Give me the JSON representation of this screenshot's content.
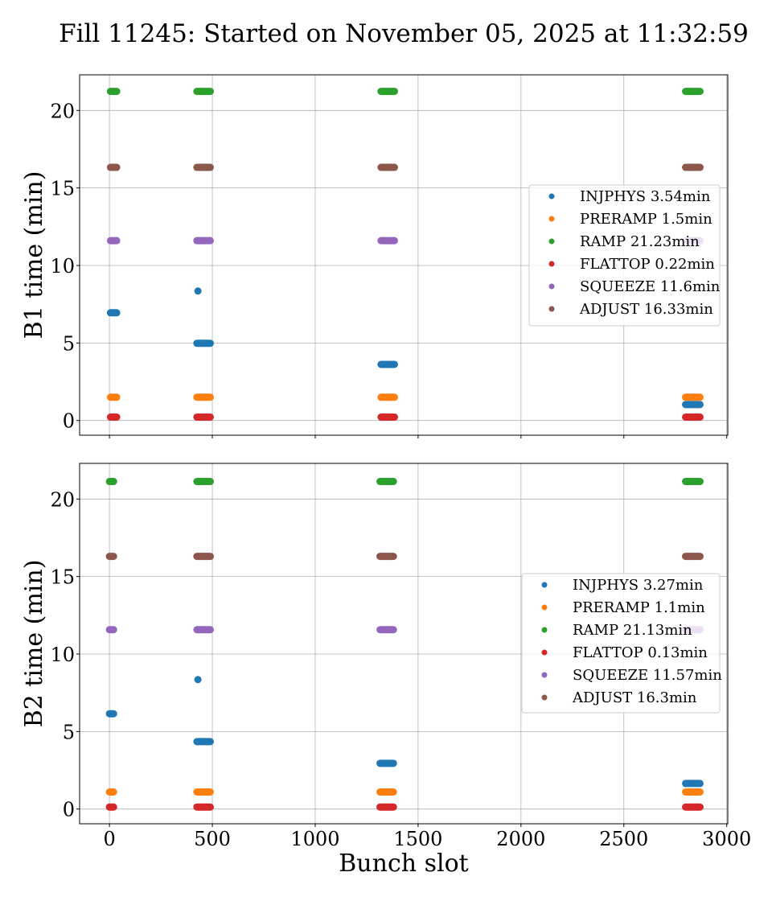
{
  "title": "Fill 11245: Started on November 05, 2025 at 11:32:59",
  "xlabel": "Bunch slot",
  "chart_data": {
    "type": "scatter",
    "title": "Fill 11245: Started on November 05, 2025 at 11:32:59",
    "xlabel": "Bunch slot",
    "xlim": [
      -145,
      3005
    ],
    "x_ticks": [
      0,
      500,
      1000,
      1500,
      2000,
      2500,
      3000
    ],
    "grid": true,
    "panels": [
      {
        "ylabel": "B1 time (min)",
        "ylim": [
          -0.95,
          22.3
        ],
        "y_ticks": [
          0,
          5,
          10,
          15,
          20
        ],
        "legend_position": "center-right",
        "series": [
          {
            "name": "INJPHYS 3.54min",
            "color": "#1f77b4",
            "points": [
              {
                "x0": 5,
                "x1": 35,
                "y": 6.95
              },
              {
                "x0": 430,
                "x1": 430,
                "y": 8.35
              },
              {
                "x0": 425,
                "x1": 490,
                "y": 4.98
              },
              {
                "x0": 1320,
                "x1": 1385,
                "y": 3.62
              },
              {
                "x0": 2800,
                "x1": 2870,
                "y": 1.03
              }
            ]
          },
          {
            "name": "PRERAMP 1.5min",
            "color": "#ff7f0e",
            "points": [
              {
                "x0": 5,
                "x1": 35,
                "y": 1.5
              },
              {
                "x0": 425,
                "x1": 490,
                "y": 1.5
              },
              {
                "x0": 1320,
                "x1": 1385,
                "y": 1.5
              },
              {
                "x0": 2800,
                "x1": 2870,
                "y": 1.5
              }
            ]
          },
          {
            "name": "RAMP 21.23min",
            "color": "#2ca02c",
            "points": [
              {
                "x0": 5,
                "x1": 35,
                "y": 21.23
              },
              {
                "x0": 425,
                "x1": 490,
                "y": 21.23
              },
              {
                "x0": 1320,
                "x1": 1385,
                "y": 21.23
              },
              {
                "x0": 2800,
                "x1": 2870,
                "y": 21.23
              }
            ]
          },
          {
            "name": "FLATTOP 0.22min",
            "color": "#d62728",
            "points": [
              {
                "x0": 5,
                "x1": 35,
                "y": 0.22
              },
              {
                "x0": 425,
                "x1": 490,
                "y": 0.22
              },
              {
                "x0": 1320,
                "x1": 1385,
                "y": 0.22
              },
              {
                "x0": 2800,
                "x1": 2870,
                "y": 0.22
              }
            ]
          },
          {
            "name": "SQUEEZE 11.6min",
            "color": "#9467bd",
            "points": [
              {
                "x0": 5,
                "x1": 35,
                "y": 11.6
              },
              {
                "x0": 425,
                "x1": 490,
                "y": 11.6
              },
              {
                "x0": 1320,
                "x1": 1385,
                "y": 11.6
              },
              {
                "x0": 2800,
                "x1": 2870,
                "y": 11.6
              }
            ]
          },
          {
            "name": "ADJUST 16.33min",
            "color": "#8c564b",
            "points": [
              {
                "x0": 5,
                "x1": 35,
                "y": 16.33
              },
              {
                "x0": 425,
                "x1": 490,
                "y": 16.33
              },
              {
                "x0": 1320,
                "x1": 1385,
                "y": 16.33
              },
              {
                "x0": 2800,
                "x1": 2870,
                "y": 16.33
              }
            ]
          }
        ]
      },
      {
        "ylabel": "B2 time (min)",
        "ylim": [
          -0.95,
          22.3
        ],
        "y_ticks": [
          0,
          5,
          10,
          15,
          20
        ],
        "legend_position": "center-right",
        "series": [
          {
            "name": "INJPHYS 3.27min",
            "color": "#1f77b4",
            "points": [
              {
                "x0": 0,
                "x1": 20,
                "y": 6.15
              },
              {
                "x0": 430,
                "x1": 430,
                "y": 8.35
              },
              {
                "x0": 425,
                "x1": 490,
                "y": 4.35
              },
              {
                "x0": 1315,
                "x1": 1380,
                "y": 2.95
              },
              {
                "x0": 2800,
                "x1": 2870,
                "y": 1.65
              }
            ]
          },
          {
            "name": "PRERAMP 1.1min",
            "color": "#ff7f0e",
            "points": [
              {
                "x0": 0,
                "x1": 20,
                "y": 1.1
              },
              {
                "x0": 425,
                "x1": 490,
                "y": 1.1
              },
              {
                "x0": 1315,
                "x1": 1380,
                "y": 1.1
              },
              {
                "x0": 2800,
                "x1": 2870,
                "y": 1.1
              }
            ]
          },
          {
            "name": "RAMP 21.13min",
            "color": "#2ca02c",
            "points": [
              {
                "x0": 0,
                "x1": 20,
                "y": 21.13
              },
              {
                "x0": 425,
                "x1": 490,
                "y": 21.13
              },
              {
                "x0": 1315,
                "x1": 1380,
                "y": 21.13
              },
              {
                "x0": 2800,
                "x1": 2870,
                "y": 21.13
              }
            ]
          },
          {
            "name": "FLATTOP 0.13min",
            "color": "#d62728",
            "points": [
              {
                "x0": 0,
                "x1": 20,
                "y": 0.13
              },
              {
                "x0": 425,
                "x1": 490,
                "y": 0.13
              },
              {
                "x0": 1315,
                "x1": 1380,
                "y": 0.13
              },
              {
                "x0": 2800,
                "x1": 2870,
                "y": 0.13
              }
            ]
          },
          {
            "name": "SQUEEZE 11.57min",
            "color": "#9467bd",
            "points": [
              {
                "x0": 0,
                "x1": 20,
                "y": 11.57
              },
              {
                "x0": 425,
                "x1": 490,
                "y": 11.57
              },
              {
                "x0": 1315,
                "x1": 1380,
                "y": 11.57
              },
              {
                "x0": 2800,
                "x1": 2870,
                "y": 11.57
              }
            ]
          },
          {
            "name": "ADJUST 16.3min",
            "color": "#8c564b",
            "points": [
              {
                "x0": 0,
                "x1": 20,
                "y": 16.3
              },
              {
                "x0": 425,
                "x1": 490,
                "y": 16.3
              },
              {
                "x0": 1315,
                "x1": 1380,
                "y": 16.3
              },
              {
                "x0": 2800,
                "x1": 2870,
                "y": 16.3
              }
            ]
          }
        ]
      }
    ]
  }
}
